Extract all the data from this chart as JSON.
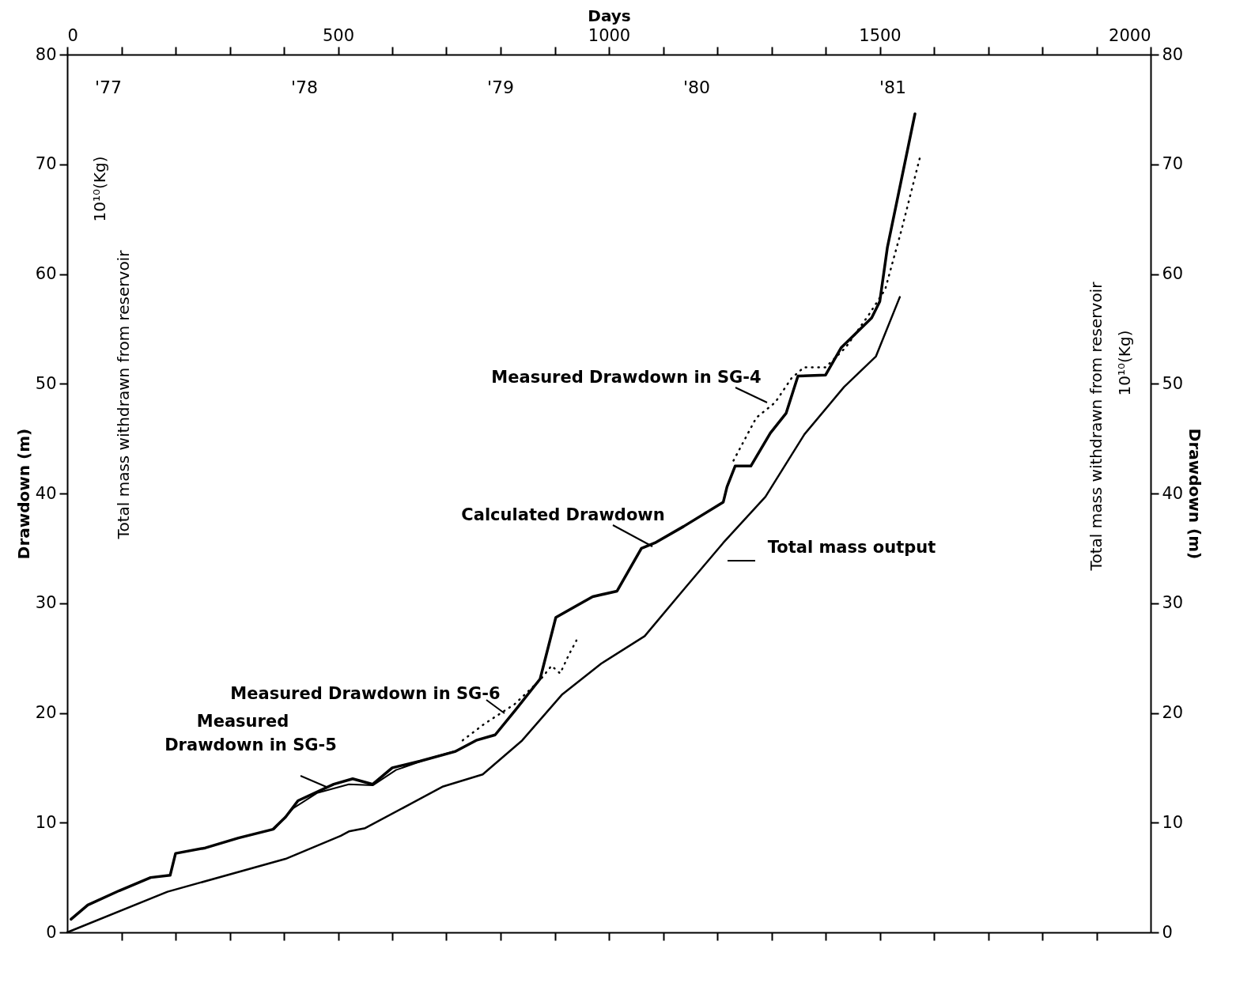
{
  "chart_data": {
    "type": "line",
    "xlabel": "Days",
    "ylabel": "Drawdown (m)",
    "y2label": "Drawdown (m)",
    "xlim": [
      0,
      2000
    ],
    "ylim": [
      0,
      80
    ],
    "y2lim": [
      0,
      80
    ],
    "xticks": [
      0,
      {
        "value": 100,
        "label": null
      },
      {
        "value": 200,
        "label": null
      },
      {
        "value": 300,
        "label": null
      },
      {
        "value": 400,
        "label": null
      },
      500,
      {
        "value": 600,
        "label": null
      },
      {
        "value": 700,
        "label": null
      },
      {
        "value": 800,
        "label": null
      },
      {
        "value": 900,
        "label": null
      },
      1000,
      {
        "value": 1100,
        "label": null
      },
      {
        "value": 1200,
        "label": null
      },
      {
        "value": 1300,
        "label": null
      },
      {
        "value": 1400,
        "label": null
      },
      1500,
      {
        "value": 1600,
        "label": null
      },
      {
        "value": 1700,
        "label": null
      },
      {
        "value": 1800,
        "label": null
      },
      {
        "value": 1900,
        "label": null
      },
      2000
    ],
    "yticks": [
      0,
      10,
      20,
      30,
      40,
      50,
      60,
      70,
      80
    ],
    "y2ticks": [
      0,
      10,
      20,
      30,
      40,
      50,
      60,
      70,
      80
    ],
    "series": [
      {
        "name": "Calculated Drawdown",
        "color": "#000000",
        "line_style": "solid",
        "x": [
          7,
          38,
          96,
          154,
          190,
          200,
          255,
          316,
          380,
          403,
          426,
          492,
          527,
          564,
          600,
          651,
          717,
          755,
          790,
          828,
          873,
          902,
          970,
          1015,
          1060,
          1085,
          1138,
          1211,
          1218,
          1233,
          1262,
          1298,
          1327,
          1349,
          1400,
          1429,
          1485,
          1500,
          1514,
          1565
        ],
        "values": [
          1.2,
          2.5,
          3.8,
          5.0,
          5.2,
          7.2,
          7.7,
          8.6,
          9.4,
          10.5,
          12.0,
          13.5,
          14.0,
          13.5,
          15.0,
          15.6,
          16.5,
          17.5,
          18.0,
          20.3,
          23.1,
          28.7,
          30.6,
          31.1,
          35.0,
          35.5,
          37.0,
          39.2,
          40.6,
          42.5,
          42.5,
          45.5,
          47.3,
          50.7,
          50.8,
          53.3,
          56.0,
          57.5,
          62.4,
          74.6
        ]
      },
      {
        "name": "Measured Drawdown in SG-4",
        "color": "#000000",
        "line_style": "dotted",
        "x": [
          1230,
          1272,
          1307,
          1337,
          1360,
          1400,
          1437,
          1480,
          1510,
          1540,
          1574
        ],
        "values": [
          43.0,
          46.9,
          48.3,
          50.5,
          51.5,
          51.5,
          53.3,
          56.3,
          58.6,
          64.0,
          70.6
        ]
      },
      {
        "name": "Measured Drawdown in SG-5",
        "color": "#000000",
        "line_style": "solid",
        "x": [
          382,
          417,
          461,
          520,
          564,
          607,
          665,
          721
        ],
        "values": [
          9.4,
          11.3,
          12.7,
          13.5,
          13.4,
          14.8,
          15.8,
          16.6
        ]
      },
      {
        "name": "Measured Drawdown in SG-6",
        "color": "#000000",
        "line_style": "dotted",
        "x": [
          730,
          770,
          826,
          873,
          894,
          910,
          926,
          940
        ],
        "values": [
          17.5,
          19.0,
          20.8,
          23.0,
          24.3,
          23.6,
          25.3,
          26.6
        ]
      },
      {
        "name": "Total mass output",
        "color": "#000000",
        "line_style": "solid",
        "axis": "y2",
        "x": [
          0,
          185,
          403,
          505,
          520,
          550,
          694,
          767,
          840,
          914,
          986,
          1066,
          1139,
          1211,
          1289,
          1361,
          1434,
          1493,
          1537
        ],
        "values": [
          0,
          3.7,
          6.7,
          8.8,
          9.2,
          9.5,
          13.3,
          14.4,
          17.5,
          21.7,
          24.5,
          27.0,
          31.3,
          35.5,
          39.7,
          45.4,
          49.7,
          52.5,
          57.9
        ]
      }
    ],
    "annotations": [
      "'77",
      "'78",
      "'79",
      "'80",
      "'81",
      "Total mass withdrawn from reservoir",
      "10¹⁰(Kg)",
      "Total mass withdrawn from reservoir",
      "10¹⁰(Kg)"
    ]
  }
}
